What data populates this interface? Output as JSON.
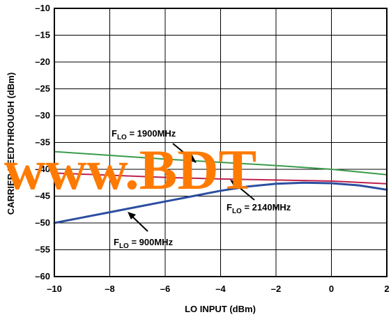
{
  "chart_data": {
    "type": "line",
    "title": "",
    "xlabel": "LO INPUT (dBm)",
    "ylabel": "CARRIER FEEDTHROUGH (dBm)",
    "xlim": [
      -10,
      2
    ],
    "ylim": [
      -60,
      -10
    ],
    "x_ticks": [
      -10,
      -8,
      -6,
      -4,
      -2,
      0,
      2
    ],
    "x_tick_labels": [
      "–10",
      "–8",
      "–6",
      "–4",
      "–2",
      "0",
      "2"
    ],
    "y_ticks": [
      -10,
      -15,
      -20,
      -25,
      -30,
      -35,
      -40,
      -45,
      -50,
      -55,
      -60
    ],
    "y_tick_labels": [
      "–10",
      "–15",
      "–20",
      "–25",
      "–30",
      "–35",
      "–40",
      "–45",
      "–50",
      "–55",
      "–60"
    ],
    "grid": true,
    "series": [
      {
        "name": "F_LO = 1900MHz",
        "color": "#3a9a4a",
        "x": [
          -10,
          -8,
          -6,
          -4,
          -2,
          0,
          2
        ],
        "y": [
          -36.7,
          -37.4,
          -38.1,
          -38.7,
          -39.3,
          -40.0,
          -41.0
        ]
      },
      {
        "name": "F_LO = 2140MHz",
        "color": "#c0204a",
        "x": [
          -10,
          -8,
          -6,
          -4,
          -2,
          0,
          2
        ],
        "y": [
          -40.7,
          -41.1,
          -41.5,
          -41.8,
          -42.0,
          -42.2,
          -42.7
        ]
      },
      {
        "name": "F_LO = 900MHz",
        "color": "#2b4ea0",
        "x": [
          -10,
          -9,
          -8,
          -7,
          -6,
          -5,
          -4,
          -3,
          -2,
          -1,
          0,
          1,
          2
        ],
        "y": [
          -50.0,
          -49.0,
          -48.0,
          -47.0,
          -46.0,
          -45.0,
          -44.0,
          -43.2,
          -42.7,
          -42.5,
          -42.6,
          -43.0,
          -43.8
        ]
      }
    ],
    "annotations": [
      {
        "prefix": "F",
        "sub": "LO",
        "suffix": " = 1900MHz",
        "series": 0
      },
      {
        "prefix": "F",
        "sub": "LO",
        "suffix": " = 2140MHz",
        "series": 1
      },
      {
        "prefix": "F",
        "sub": "LO",
        "suffix": " = 900MHz",
        "series": 2
      }
    ],
    "watermark": "www.BDT"
  }
}
